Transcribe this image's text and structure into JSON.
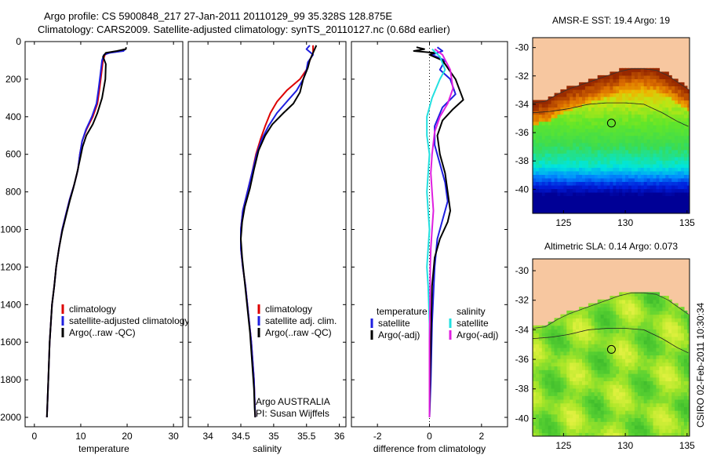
{
  "header": {
    "line1": "Argo profile: CS 5900848_217 27-Jan-2011 20110129_99 35.328S 128.875E",
    "line2": "Climatology: CARS2009. Satellite-adjusted climatology: synTS_20110127.nc (0.68d earlier)"
  },
  "credit": "CSIRO 02-Feb-2011 10:30:34",
  "colors": {
    "climatology": "#dd0000",
    "satellite": "#1f1fe0",
    "argo": "#000000",
    "sal_satellite": "#22e0e0",
    "sal_argo": "#e020e0",
    "land": "#f7c7a0"
  },
  "chart_data": [
    {
      "type": "line",
      "xlabel": "temperature",
      "ylabel": "",
      "xlim": [
        -2,
        32
      ],
      "ylim": [
        2050,
        0
      ],
      "xticks": [
        0,
        10,
        20,
        30
      ],
      "yticks": [
        0,
        200,
        400,
        600,
        800,
        1000,
        1200,
        1400,
        1600,
        1800,
        2000
      ],
      "legend": "right",
      "legend_entries": [
        "climatology",
        "satellite-adjusted climatology",
        "Argo(..raw -QC)"
      ],
      "series": [
        {
          "name": "climatology",
          "color": "#dd0000",
          "points": [
            [
              19.3,
              40
            ],
            [
              18.8,
              50
            ],
            [
              16,
              60
            ],
            [
              15.2,
              70
            ],
            [
              14.8,
              100
            ],
            [
              14.4,
              180
            ],
            [
              14,
              260
            ],
            [
              13.6,
              330
            ],
            [
              12.6,
              400
            ],
            [
              11.2,
              470
            ],
            [
              10.3,
              530
            ],
            [
              9.8,
              600
            ],
            [
              9.4,
              680
            ],
            [
              8.6,
              760
            ],
            [
              7.6,
              840
            ],
            [
              6.8,
              920
            ],
            [
              6,
              1000
            ],
            [
              5.3,
              1100
            ],
            [
              4.7,
              1200
            ],
            [
              4.3,
              1300
            ],
            [
              3.8,
              1400
            ],
            [
              3.3,
              1600
            ],
            [
              3,
              1800
            ],
            [
              2.7,
              2000
            ]
          ]
        },
        {
          "name": "satellite-adjusted climatology",
          "color": "#1f1fe0",
          "points": [
            [
              19.6,
              40
            ],
            [
              19.2,
              50
            ],
            [
              16.2,
              60
            ],
            [
              15,
              70
            ],
            [
              14.6,
              100
            ],
            [
              14.2,
              180
            ],
            [
              13.8,
              260
            ],
            [
              13.4,
              330
            ],
            [
              12.4,
              400
            ],
            [
              11.1,
              470
            ],
            [
              10.3,
              530
            ],
            [
              9.8,
              600
            ],
            [
              9.4,
              680
            ],
            [
              8.6,
              760
            ],
            [
              7.6,
              840
            ],
            [
              6.8,
              920
            ],
            [
              6,
              1000
            ],
            [
              5.3,
              1100
            ],
            [
              4.7,
              1200
            ],
            [
              4.3,
              1300
            ],
            [
              3.8,
              1400
            ],
            [
              3.3,
              1600
            ],
            [
              3,
              1800
            ],
            [
              2.7,
              2000
            ]
          ]
        },
        {
          "name": "Argo(..raw -QC)",
          "color": "#000000",
          "points": [
            [
              19.8,
              30
            ],
            [
              19.7,
              40
            ],
            [
              17.8,
              50
            ],
            [
              15.4,
              60
            ],
            [
              14.8,
              80
            ],
            [
              15.4,
              120
            ],
            [
              15.3,
              200
            ],
            [
              14.6,
              300
            ],
            [
              13.6,
              380
            ],
            [
              12.6,
              440
            ],
            [
              11.2,
              500
            ],
            [
              10.4,
              560
            ],
            [
              9.8,
              630
            ],
            [
              9.2,
              700
            ],
            [
              8.4,
              780
            ],
            [
              7.6,
              850
            ],
            [
              6.8,
              930
            ],
            [
              6,
              1010
            ],
            [
              5.3,
              1100
            ],
            [
              4.7,
              1200
            ],
            [
              4.3,
              1300
            ],
            [
              3.8,
              1400
            ],
            [
              3.3,
              1600
            ],
            [
              3,
              1800
            ],
            [
              2.7,
              2000
            ]
          ]
        }
      ]
    },
    {
      "type": "line",
      "xlabel": "salinity",
      "ylabel": "",
      "xlim": [
        33.7,
        36.1
      ],
      "ylim": [
        2050,
        0
      ],
      "xticks": [
        34,
        34.5,
        35,
        35.5,
        36
      ],
      "legend": "right",
      "legend_entries": [
        "climatology",
        "satellite adj. clim.",
        "Argo(..raw -QC)"
      ],
      "annotation": [
        "Argo AUSTRALIA",
        "PI: Susan Wijffels"
      ],
      "series": [
        {
          "name": "climatology",
          "color": "#dd0000",
          "points": [
            [
              35.6,
              20
            ],
            [
              35.6,
              60
            ],
            [
              35.55,
              100
            ],
            [
              35.5,
              150
            ],
            [
              35.4,
              200
            ],
            [
              35.2,
              260
            ],
            [
              35.05,
              320
            ],
            [
              34.95,
              380
            ],
            [
              34.87,
              450
            ],
            [
              34.8,
              520
            ],
            [
              34.73,
              600
            ],
            [
              34.67,
              700
            ],
            [
              34.6,
              800
            ],
            [
              34.53,
              900
            ],
            [
              34.5,
              1000
            ],
            [
              34.5,
              1100
            ],
            [
              34.53,
              1200
            ],
            [
              34.57,
              1300
            ],
            [
              34.6,
              1400
            ],
            [
              34.63,
              1500
            ],
            [
              34.66,
              1600
            ],
            [
              34.68,
              1700
            ],
            [
              34.7,
              1800
            ],
            [
              34.71,
              1900
            ],
            [
              34.72,
              2000
            ]
          ]
        },
        {
          "name": "satellite adj. clim.",
          "color": "#1f1fe0",
          "points": [
            [
              35.55,
              20
            ],
            [
              35.5,
              40
            ],
            [
              35.6,
              70
            ],
            [
              35.52,
              110
            ],
            [
              35.5,
              150
            ],
            [
              35.45,
              200
            ],
            [
              35.35,
              260
            ],
            [
              35.2,
              320
            ],
            [
              35.05,
              380
            ],
            [
              34.92,
              450
            ],
            [
              34.82,
              520
            ],
            [
              34.74,
              600
            ],
            [
              34.67,
              700
            ],
            [
              34.6,
              800
            ],
            [
              34.53,
              900
            ],
            [
              34.5,
              1000
            ],
            [
              34.5,
              1100
            ],
            [
              34.53,
              1200
            ],
            [
              34.57,
              1300
            ],
            [
              34.6,
              1400
            ],
            [
              34.63,
              1500
            ],
            [
              34.66,
              1600
            ],
            [
              34.68,
              1700
            ],
            [
              34.7,
              1800
            ],
            [
              34.71,
              1900
            ],
            [
              34.72,
              2000
            ]
          ]
        },
        {
          "name": "Argo(..raw -QC)",
          "color": "#000000",
          "points": [
            [
              35.65,
              20
            ],
            [
              35.6,
              60
            ],
            [
              35.55,
              100
            ],
            [
              35.52,
              140
            ],
            [
              35.45,
              200
            ],
            [
              35.4,
              270
            ],
            [
              35.3,
              330
            ],
            [
              35.15,
              380
            ],
            [
              34.98,
              440
            ],
            [
              34.87,
              500
            ],
            [
              34.77,
              580
            ],
            [
              34.7,
              680
            ],
            [
              34.64,
              780
            ],
            [
              34.56,
              880
            ],
            [
              34.52,
              960
            ],
            [
              34.5,
              1050
            ],
            [
              34.52,
              1150
            ],
            [
              34.55,
              1250
            ],
            [
              34.58,
              1350
            ],
            [
              34.61,
              1450
            ],
            [
              34.64,
              1550
            ],
            [
              34.66,
              1650
            ],
            [
              34.68,
              1750
            ],
            [
              34.7,
              1850
            ],
            [
              34.71,
              1950
            ],
            [
              34.72,
              2000
            ]
          ]
        }
      ]
    },
    {
      "type": "line",
      "xlabel": "difference from climatology",
      "ylabel": "",
      "xlim": [
        -3,
        3
      ],
      "ylim": [
        2050,
        0
      ],
      "xticks": [
        -2,
        0,
        2
      ],
      "legend": "right",
      "legend_columns": [
        "temperature",
        "salinity"
      ],
      "series": [
        {
          "name": "satellite",
          "group": "temperature",
          "color": "#1f1fe0",
          "points": [
            [
              0.3,
              30
            ],
            [
              0.5,
              50
            ],
            [
              0.1,
              70
            ],
            [
              0.6,
              100
            ],
            [
              0.4,
              150
            ],
            [
              0.8,
              200
            ],
            [
              1.0,
              280
            ],
            [
              0.5,
              350
            ],
            [
              0.2,
              450
            ],
            [
              0.2,
              550
            ],
            [
              0.4,
              650
            ],
            [
              0.6,
              750
            ],
            [
              0.7,
              850
            ],
            [
              0.5,
              950
            ],
            [
              0.3,
              1050
            ],
            [
              0.2,
              1200
            ],
            [
              0.1,
              1500
            ],
            [
              0.05,
              1800
            ],
            [
              0.0,
              2000
            ]
          ]
        },
        {
          "name": "Argo(-adj)",
          "group": "temperature",
          "color": "#000000",
          "points": [
            [
              -0.5,
              30
            ],
            [
              -0.2,
              40
            ],
            [
              -0.6,
              50
            ],
            [
              0.2,
              60
            ],
            [
              0.0,
              70
            ],
            [
              0.5,
              100
            ],
            [
              1.0,
              200
            ],
            [
              1.3,
              310
            ],
            [
              0.9,
              360
            ],
            [
              0.5,
              420
            ],
            [
              0.3,
              500
            ],
            [
              0.4,
              600
            ],
            [
              0.6,
              700
            ],
            [
              0.7,
              800
            ],
            [
              0.8,
              900
            ],
            [
              0.7,
              960
            ],
            [
              0.4,
              1050
            ],
            [
              0.2,
              1150
            ],
            [
              0.1,
              1300
            ],
            [
              0.05,
              1600
            ],
            [
              0.02,
              1800
            ],
            [
              0.0,
              2000
            ]
          ]
        },
        {
          "name": "satellite",
          "group": "salinity",
          "color": "#22e0e0",
          "points": [
            [
              0.1,
              40
            ],
            [
              0.4,
              80
            ],
            [
              0.6,
              150
            ],
            [
              0.4,
              200
            ],
            [
              0.1,
              300
            ],
            [
              -0.1,
              400
            ],
            [
              -0.1,
              500
            ],
            [
              0.0,
              600
            ],
            [
              -0.05,
              700
            ],
            [
              -0.1,
              800
            ],
            [
              -0.05,
              900
            ],
            [
              0.0,
              1000
            ],
            [
              -0.05,
              1100
            ],
            [
              -0.1,
              1200
            ],
            [
              -0.05,
              1300
            ],
            [
              0.0,
              1500
            ],
            [
              0.0,
              2000
            ]
          ]
        },
        {
          "name": "Argo(-adj)",
          "group": "salinity",
          "color": "#e020e0",
          "points": [
            [
              0.2,
              40
            ],
            [
              0.5,
              70
            ],
            [
              0.8,
              150
            ],
            [
              0.9,
              250
            ],
            [
              0.7,
              330
            ],
            [
              0.4,
              400
            ],
            [
              0.2,
              480
            ],
            [
              0.1,
              600
            ],
            [
              0.05,
              700
            ],
            [
              0.1,
              800
            ],
            [
              0.15,
              900
            ],
            [
              0.1,
              1000
            ],
            [
              0.05,
              1100
            ],
            [
              0.03,
              1200
            ],
            [
              0.02,
              1400
            ],
            [
              0.0,
              1600
            ],
            [
              0.0,
              2000
            ]
          ]
        }
      ]
    },
    {
      "type": "heatmap",
      "title": "AMSR-E SST: 19.4 Argo: 19",
      "xlim": [
        122.5,
        135.2
      ],
      "ylim": [
        -41.7,
        -29.3
      ],
      "xticks": [
        125,
        130,
        135
      ],
      "yticks": [
        -30,
        -32,
        -34,
        -36,
        -38,
        -40
      ],
      "marker": [
        128.875,
        -35.328
      ]
    },
    {
      "type": "heatmap",
      "title": "Altimetric SLA: 0.14 Argo: 0.073",
      "xlim": [
        122.5,
        135.2
      ],
      "ylim": [
        -41.2,
        -29.2
      ],
      "xticks": [
        125,
        130,
        135
      ],
      "yticks": [
        -30,
        -32,
        -34,
        -36,
        -38,
        -40
      ],
      "marker": [
        128.875,
        -35.328
      ]
    }
  ]
}
